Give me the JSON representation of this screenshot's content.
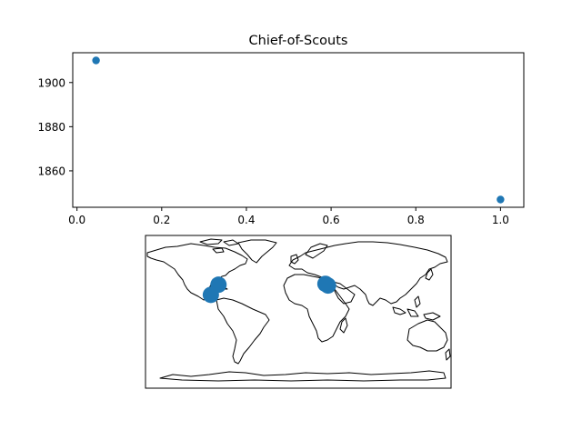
{
  "chart_data": [
    {
      "type": "scatter",
      "title": "Chief-of-Scouts",
      "xlabel": "",
      "ylabel": "",
      "xlim": [
        -0.01,
        1.055
      ],
      "ylim": [
        1843.5,
        1913.5
      ],
      "xticks": [
        0.0,
        0.2,
        0.4,
        0.6,
        0.8,
        1.0
      ],
      "xtick_labels": [
        "0.0",
        "0.2",
        "0.4",
        "0.6",
        "0.8",
        "1.0"
      ],
      "yticks": [
        1860,
        1880,
        1900
      ],
      "ytick_labels": [
        "1860",
        "1880",
        "1900"
      ],
      "grid": false,
      "points": [
        {
          "x": 0.045,
          "y": 1910
        },
        {
          "x": 1.0,
          "y": 1847
        }
      ],
      "color": "#1f77b4"
    },
    {
      "type": "scatter",
      "projection": "world-map",
      "title": "",
      "lon_range": [
        -180,
        180
      ],
      "lat_range": [
        -90,
        90
      ],
      "points": [
        {
          "lon": -94,
          "lat": 32,
          "size": "large"
        },
        {
          "lon": -103,
          "lat": 20,
          "size": "large"
        },
        {
          "lon": 32,
          "lat": 33,
          "size": "large"
        },
        {
          "lon": 35,
          "lat": 31,
          "size": "large"
        }
      ],
      "color": "#1f77b4"
    }
  ]
}
